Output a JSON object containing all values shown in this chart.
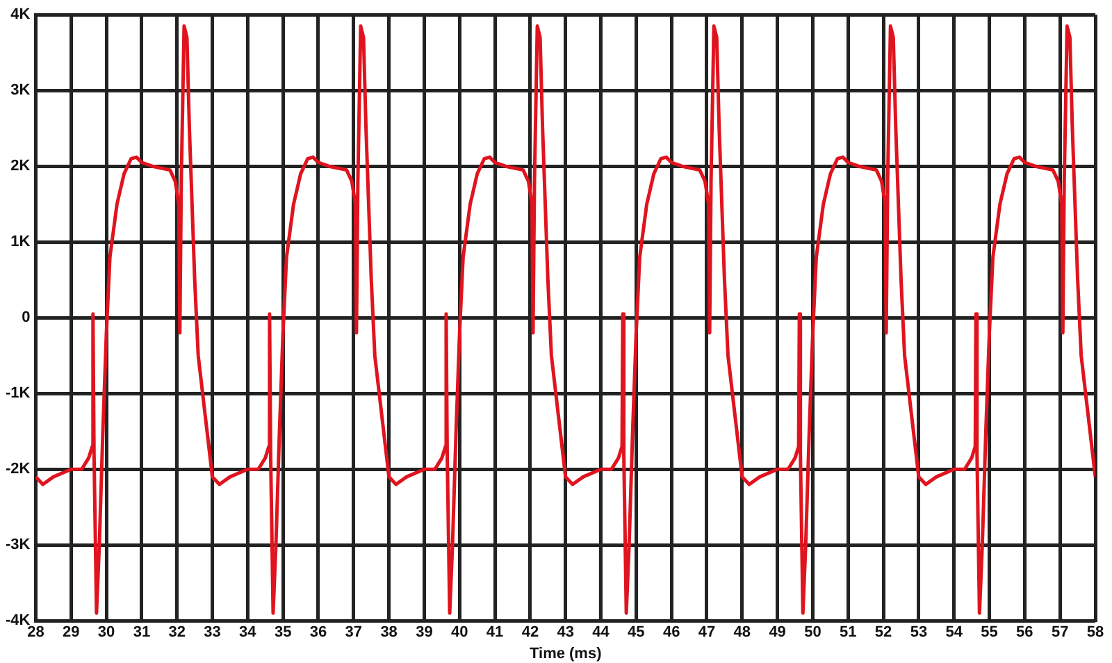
{
  "chart_data": {
    "type": "line",
    "xlabel": "Time (ms)",
    "x": [
      28,
      28.2,
      28.5,
      29,
      29.3,
      29.5,
      29.6,
      29.62,
      29.65,
      29.72,
      29.8,
      29.9,
      30,
      30.1,
      30.3,
      30.5,
      30.7,
      30.85,
      31,
      31.3,
      31.8,
      31.95,
      32.05,
      32.08,
      32.12,
      32.2,
      32.28,
      32.35,
      32.5,
      32.6,
      32.8,
      33,
      33.2,
      33.5,
      34,
      34.3,
      34.5,
      34.6,
      34.62,
      34.65,
      34.72,
      34.8,
      34.9,
      35,
      35.1,
      35.3,
      35.5,
      35.7,
      35.85,
      36,
      36.3,
      36.8,
      36.95,
      37.05,
      37.08,
      37.12,
      37.2,
      37.28,
      37.35,
      37.5,
      37.6,
      37.8,
      38,
      38.2,
      38.5,
      39,
      39.3,
      39.5,
      39.6,
      39.62,
      39.65,
      39.72,
      39.8,
      39.9,
      40,
      40.1,
      40.3,
      40.5,
      40.7,
      40.85,
      41,
      41.3,
      41.8,
      41.95,
      42.05,
      42.08,
      42.12,
      42.2,
      42.28,
      42.35,
      42.5,
      42.6,
      42.8,
      43,
      43.2,
      43.5,
      44,
      44.3,
      44.5,
      44.6,
      44.62,
      44.65,
      44.72,
      44.8,
      44.9,
      45,
      45.1,
      45.3,
      45.5,
      45.7,
      45.85,
      46,
      46.3,
      46.8,
      46.95,
      47.05,
      47.08,
      47.12,
      47.2,
      47.28,
      47.35,
      47.5,
      47.6,
      47.8,
      48,
      48.2,
      48.5,
      49,
      49.3,
      49.5,
      49.6,
      49.62,
      49.65,
      49.72,
      49.8,
      49.9,
      50,
      50.1,
      50.3,
      50.5,
      50.7,
      50.85,
      51,
      51.3,
      51.8,
      51.95,
      52.05,
      52.08,
      52.12,
      52.2,
      52.28,
      52.35,
      52.5,
      52.6,
      52.8,
      53,
      53.2,
      53.5,
      54,
      54.3,
      54.5,
      54.6,
      54.62,
      54.65,
      54.72,
      54.8,
      54.9,
      55,
      55.1,
      55.3,
      55.5,
      55.7,
      55.85,
      56,
      56.3,
      56.8,
      56.95,
      57.05,
      57.08,
      57.12,
      57.2,
      57.28,
      57.35,
      57.5,
      57.6,
      57.8,
      58
    ],
    "series": [
      {
        "color": "#e0141e",
        "values": [
          -2100,
          -2200,
          -2100,
          -2000,
          -2000,
          -1850,
          -1700,
          50,
          -1800,
          -3900,
          -3000,
          -1500,
          -200,
          800,
          1500,
          1900,
          2100,
          2120,
          2050,
          2000,
          1950,
          1800,
          1500,
          -200,
          1800,
          3850,
          3700,
          2500,
          500,
          -500,
          -1300,
          -2100,
          -2200,
          -2100,
          -2000,
          -2000,
          -1850,
          -1700,
          50,
          -1800,
          -3900,
          -3000,
          -1500,
          -200,
          800,
          1500,
          1900,
          2100,
          2120,
          2050,
          2000,
          1950,
          1800,
          1500,
          -200,
          1800,
          3850,
          3700,
          2500,
          500,
          -500,
          -1300,
          -2100,
          -2200,
          -2100,
          -2000,
          -2000,
          -1850,
          -1700,
          50,
          -1800,
          -3900,
          -3000,
          -1500,
          -200,
          800,
          1500,
          1900,
          2100,
          2120,
          2050,
          2000,
          1950,
          1800,
          1500,
          -200,
          1800,
          3850,
          3700,
          2500,
          500,
          -500,
          -1300,
          -2100,
          -2200,
          -2100,
          -2000,
          -2000,
          -1850,
          -1700,
          50,
          -1800,
          -3900,
          -3000,
          -1500,
          -200,
          800,
          1500,
          1900,
          2100,
          2120,
          2050,
          2000,
          1950,
          1800,
          1500,
          -200,
          1800,
          3850,
          3700,
          2500,
          500,
          -500,
          -1300,
          -2100,
          -2200,
          -2100,
          -2000,
          -2000,
          -1850,
          -1700,
          50,
          -1800,
          -3900,
          -3000,
          -1500,
          -200,
          800,
          1500,
          1900,
          2100,
          2120,
          2050,
          2000,
          1950,
          1800,
          1500,
          -200,
          1800,
          3850,
          3700,
          2500,
          500,
          -500,
          -1300,
          -2100,
          -2200,
          -2100,
          -2000,
          -2000,
          -1850,
          -1700,
          50,
          -1800,
          -3900,
          -3000,
          -1500,
          -200,
          800,
          1500,
          1900,
          2100,
          2120,
          2050,
          2000,
          1950,
          1800,
          1500,
          -200,
          1800,
          3850,
          3700,
          2500,
          500,
          -500,
          -1300,
          -2100
        ]
      }
    ],
    "xlim": [
      28,
      58
    ],
    "xticks": [
      28,
      29,
      30,
      31,
      32,
      33,
      34,
      35,
      36,
      37,
      38,
      39,
      40,
      41,
      42,
      43,
      44,
      45,
      46,
      47,
      48,
      49,
      50,
      51,
      52,
      53,
      54,
      55,
      56,
      57,
      58
    ],
    "ylim": [
      -4000,
      4000
    ],
    "yticks": [
      {
        "value": -4000,
        "label": "-4K"
      },
      {
        "value": -3000,
        "label": "-3K"
      },
      {
        "value": -2000,
        "label": "-2K"
      },
      {
        "value": -1000,
        "label": "-1K"
      },
      {
        "value": 0,
        "label": "0"
      },
      {
        "value": 1000,
        "label": "1K"
      },
      {
        "value": 2000,
        "label": "2K"
      },
      {
        "value": 3000,
        "label": "3K"
      },
      {
        "value": 4000,
        "label": "4K"
      }
    ],
    "grid": true,
    "marker": "none",
    "line_style": "solid"
  }
}
